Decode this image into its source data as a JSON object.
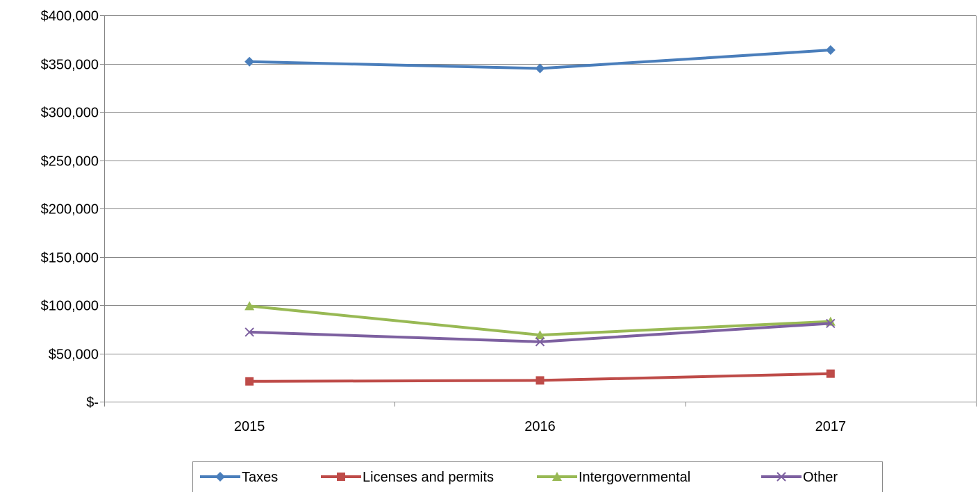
{
  "chart_data": {
    "type": "line",
    "title": "",
    "xlabel": "",
    "ylabel": "",
    "categories": [
      "2015",
      "2016",
      "2017"
    ],
    "ylim": [
      0,
      400000
    ],
    "y_ticks": [
      0,
      50000,
      100000,
      150000,
      200000,
      250000,
      300000,
      350000,
      400000
    ],
    "y_tick_labels": [
      "$-",
      "$50,000",
      "$100,000",
      "$150,000",
      "$200,000",
      "$250,000",
      "$300,000",
      "$350,000",
      "$400,000"
    ],
    "grid": "horizontal",
    "legend_position": "bottom",
    "series": [
      {
        "name": "Taxes",
        "values": [
          352000,
          345000,
          364000
        ],
        "color": "#4A7EBB",
        "marker": "diamond"
      },
      {
        "name": "Licenses and permits",
        "values": [
          21000,
          22000,
          29000
        ],
        "color": "#BE4B48",
        "marker": "square"
      },
      {
        "name": "Intergovernmental",
        "values": [
          99000,
          69000,
          83000
        ],
        "color": "#98B954",
        "marker": "triangle"
      },
      {
        "name": "Other",
        "values": [
          72000,
          62000,
          81000
        ],
        "color": "#7D60A0",
        "marker": "x"
      }
    ]
  }
}
